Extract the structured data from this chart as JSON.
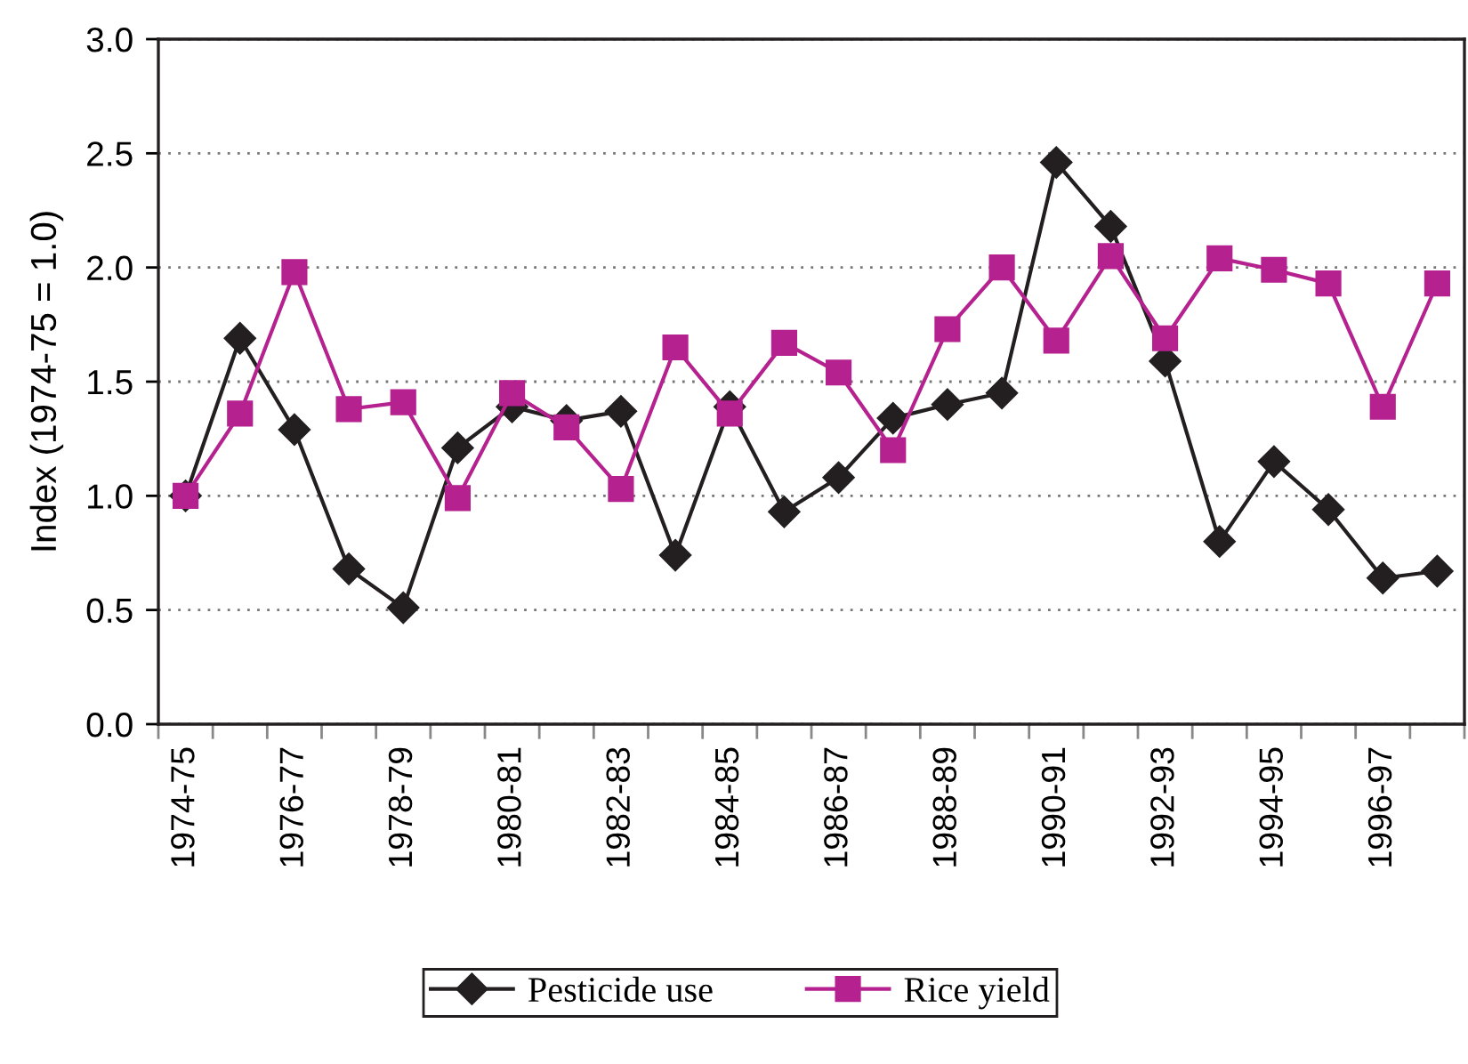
{
  "chart_data": {
    "type": "line",
    "ylabel": "Index (1974-75 = 1.0)",
    "categories": [
      "1974-75",
      null,
      "1976-77",
      null,
      "1978-79",
      null,
      "1980-81",
      null,
      "1982-83",
      null,
      "1984-85",
      null,
      "1986-87",
      null,
      "1988-89",
      null,
      "1990-91",
      null,
      "1992-93",
      null,
      "1994-95",
      null,
      "1996-97",
      null
    ],
    "series": [
      {
        "name": "Pesticide use",
        "color": "#231f20",
        "marker": "diamond",
        "values": [
          1.0,
          1.69,
          1.29,
          0.68,
          0.51,
          1.21,
          1.39,
          1.33,
          1.37,
          0.74,
          1.39,
          0.93,
          1.08,
          1.34,
          1.4,
          1.45,
          2.46,
          2.18,
          1.59,
          0.8,
          1.15,
          0.94,
          0.64,
          0.67
        ]
      },
      {
        "name": "Rice yield",
        "color": "#b5218f",
        "marker": "square",
        "values": [
          1.0,
          1.36,
          1.98,
          1.38,
          1.41,
          0.99,
          1.45,
          1.3,
          1.03,
          1.65,
          1.36,
          1.67,
          1.54,
          1.2,
          1.73,
          2.0,
          1.68,
          2.05,
          1.69,
          2.04,
          1.99,
          1.93,
          1.39,
          1.93
        ]
      }
    ],
    "ylim": [
      0,
      3
    ],
    "yticks": [
      {
        "value": 0,
        "label": "0.0"
      },
      {
        "value": 0.5,
        "label": "0.5"
      },
      {
        "value": 1,
        "label": "1.0"
      },
      {
        "value": 1.5,
        "label": "1.5"
      },
      {
        "value": 2,
        "label": "2.0"
      },
      {
        "value": 2.5,
        "label": "2.5"
      },
      {
        "value": 3,
        "label": "3.0"
      }
    ],
    "grid": "y",
    "legend": "bottom",
    "line_style": "solid"
  }
}
